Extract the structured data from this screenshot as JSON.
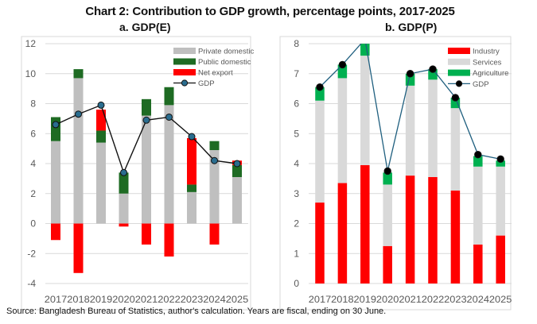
{
  "title": "Chart 2: Contribution to GDP growth, percentage points, 2017-2025",
  "source": "Source: Bangladesh Bureau of Statistics, author's calculation. Years are fiscal, ending on 30 June.",
  "chart_data": [
    {
      "type": "bar",
      "stacked": true,
      "title": "a.   GDP(E)",
      "categories": [
        "2017",
        "2018",
        "2019",
        "2020",
        "2021",
        "2022",
        "2023",
        "2024",
        "2025"
      ],
      "ylim": [
        -4,
        12
      ],
      "yticks": [
        "-4",
        "-2",
        "0",
        "2",
        "4",
        "6",
        "8",
        "10",
        "12"
      ],
      "grid": true,
      "legend_position": "top-right",
      "series": [
        {
          "name": "Private domestic",
          "kind": "bar",
          "color": "#bfbfbf",
          "values": [
            5.5,
            9.7,
            5.4,
            2.0,
            7.2,
            7.9,
            2.1,
            4.9,
            3.1
          ]
        },
        {
          "name": "Public domestic",
          "kind": "bar",
          "color": "#1e6b23",
          "values": [
            1.6,
            0.6,
            0.8,
            1.4,
            1.1,
            1.2,
            0.5,
            0.6,
            0.8
          ]
        },
        {
          "name": "Net export",
          "kind": "bar",
          "color": "#ff0000",
          "values": [
            -1.1,
            -3.3,
            1.4,
            -0.2,
            -1.4,
            -2.2,
            3.1,
            -1.4,
            0.3
          ]
        },
        {
          "name": "GDP",
          "kind": "line",
          "color": "#111111",
          "marker": "#2a6d8f",
          "values": [
            6.6,
            7.3,
            7.9,
            3.4,
            6.9,
            7.1,
            5.8,
            4.2,
            4.0
          ]
        }
      ]
    },
    {
      "type": "bar",
      "stacked": true,
      "title": "b.   GDP(P)",
      "categories": [
        "2017",
        "2018",
        "2019",
        "2020",
        "2021",
        "2022",
        "2023",
        "2024",
        "2025"
      ],
      "ylim": [
        0,
        8
      ],
      "yticks": [
        "0",
        "1",
        "2",
        "3",
        "4",
        "5",
        "6",
        "7",
        "8"
      ],
      "grid": true,
      "legend_position": "top-right",
      "series": [
        {
          "name": "Industry",
          "kind": "bar",
          "color": "#ff0000",
          "values": [
            2.7,
            3.35,
            3.95,
            1.25,
            3.6,
            3.55,
            3.1,
            1.3,
            1.6
          ]
        },
        {
          "name": "Services",
          "kind": "bar",
          "color": "#d9d9d9",
          "values": [
            3.4,
            3.5,
            3.65,
            2.05,
            3.0,
            3.25,
            2.75,
            2.6,
            2.3
          ]
        },
        {
          "name": "Agriculture",
          "kind": "bar",
          "color": "#00b050",
          "values": [
            0.45,
            0.45,
            0.45,
            0.4,
            0.4,
            0.35,
            0.35,
            0.35,
            0.2
          ]
        },
        {
          "name": "GDP",
          "kind": "line",
          "color": "#1f5f7f",
          "marker": "#000000",
          "values": [
            6.55,
            7.3,
            8.15,
            3.75,
            7.0,
            7.15,
            6.2,
            4.3,
            4.15
          ]
        }
      ]
    }
  ]
}
